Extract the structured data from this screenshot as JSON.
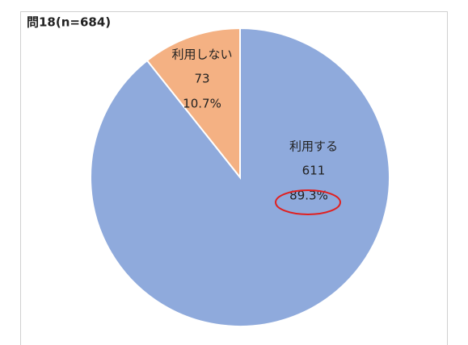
{
  "chart_data": {
    "type": "pie",
    "title": "問18(n=684)",
    "categories": [
      "利用する",
      "利用しない"
    ],
    "values": [
      611,
      73
    ],
    "percents": [
      89.3,
      10.7
    ],
    "percent_labels": [
      "89.3%",
      "10.7%"
    ],
    "colors": [
      "#8faadc",
      "#f4b183"
    ]
  }
}
